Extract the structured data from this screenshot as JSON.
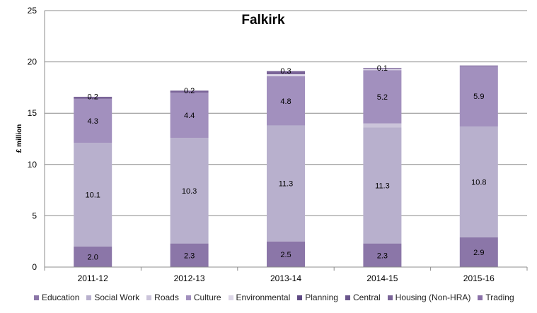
{
  "chart_data": {
    "type": "bar",
    "stacked": true,
    "title": "Falkirk",
    "xlabel": "",
    "ylabel": "£ million",
    "ylim": [
      0,
      25
    ],
    "yticks": [
      0,
      5,
      10,
      15,
      20,
      25
    ],
    "grid": true,
    "legend_position": "bottom",
    "categories": [
      "2011-12",
      "2012-13",
      "2013-14",
      "2014-15",
      "2015-16"
    ],
    "series": [
      {
        "name": "Education",
        "color": "#8b76a8",
        "values": [
          2.0,
          2.3,
          2.5,
          2.3,
          2.9
        ],
        "labels": [
          "2.0",
          "2.3",
          "2.5",
          "2.3",
          "2.9"
        ]
      },
      {
        "name": "Social Work",
        "color": "#b8b0cd",
        "values": [
          10.1,
          10.3,
          11.3,
          11.3,
          10.8
        ],
        "labels": [
          "10.1",
          "10.3",
          "11.3",
          "11.3",
          "10.8"
        ]
      },
      {
        "name": "Roads",
        "color": "#cbc4da",
        "values": [
          0.0,
          0.0,
          0.0,
          0.4,
          0.0
        ],
        "labels": [
          "",
          "",
          "",
          "",
          ""
        ]
      },
      {
        "name": "Culture",
        "color": "#a290be",
        "values": [
          4.3,
          4.4,
          4.8,
          5.2,
          5.9
        ],
        "labels": [
          "4.3",
          "4.4",
          "4.8",
          "5.2",
          "5.9"
        ]
      },
      {
        "name": "Environmental",
        "color": "#ddd7e8",
        "values": [
          0.0,
          0.0,
          0.2,
          0.1,
          0.0
        ],
        "labels": [
          "",
          "",
          "",
          "",
          ""
        ]
      },
      {
        "name": "Planning",
        "color": "#5f4a84",
        "values": [
          0.0,
          0.0,
          0.0,
          0.0,
          0.0
        ],
        "labels": [
          "",
          "",
          "",
          "",
          ""
        ]
      },
      {
        "name": "Central",
        "color": "#6a568c",
        "values": [
          0.0,
          0.0,
          0.0,
          0.0,
          0.0
        ],
        "labels": [
          "",
          "",
          "",
          "",
          ""
        ]
      },
      {
        "name": "Housing (Non-HRA)",
        "color": "#7a6498",
        "values": [
          0.2,
          0.2,
          0.3,
          0.1,
          0.05
        ],
        "labels": [
          "0.2",
          "0.2",
          "0.3",
          "0.1",
          ""
        ]
      },
      {
        "name": "Trading",
        "color": "#8a70a8",
        "values": [
          0.0,
          0.0,
          0.0,
          0.0,
          0.0
        ],
        "labels": [
          "",
          "",
          "",
          "",
          ""
        ]
      }
    ]
  }
}
